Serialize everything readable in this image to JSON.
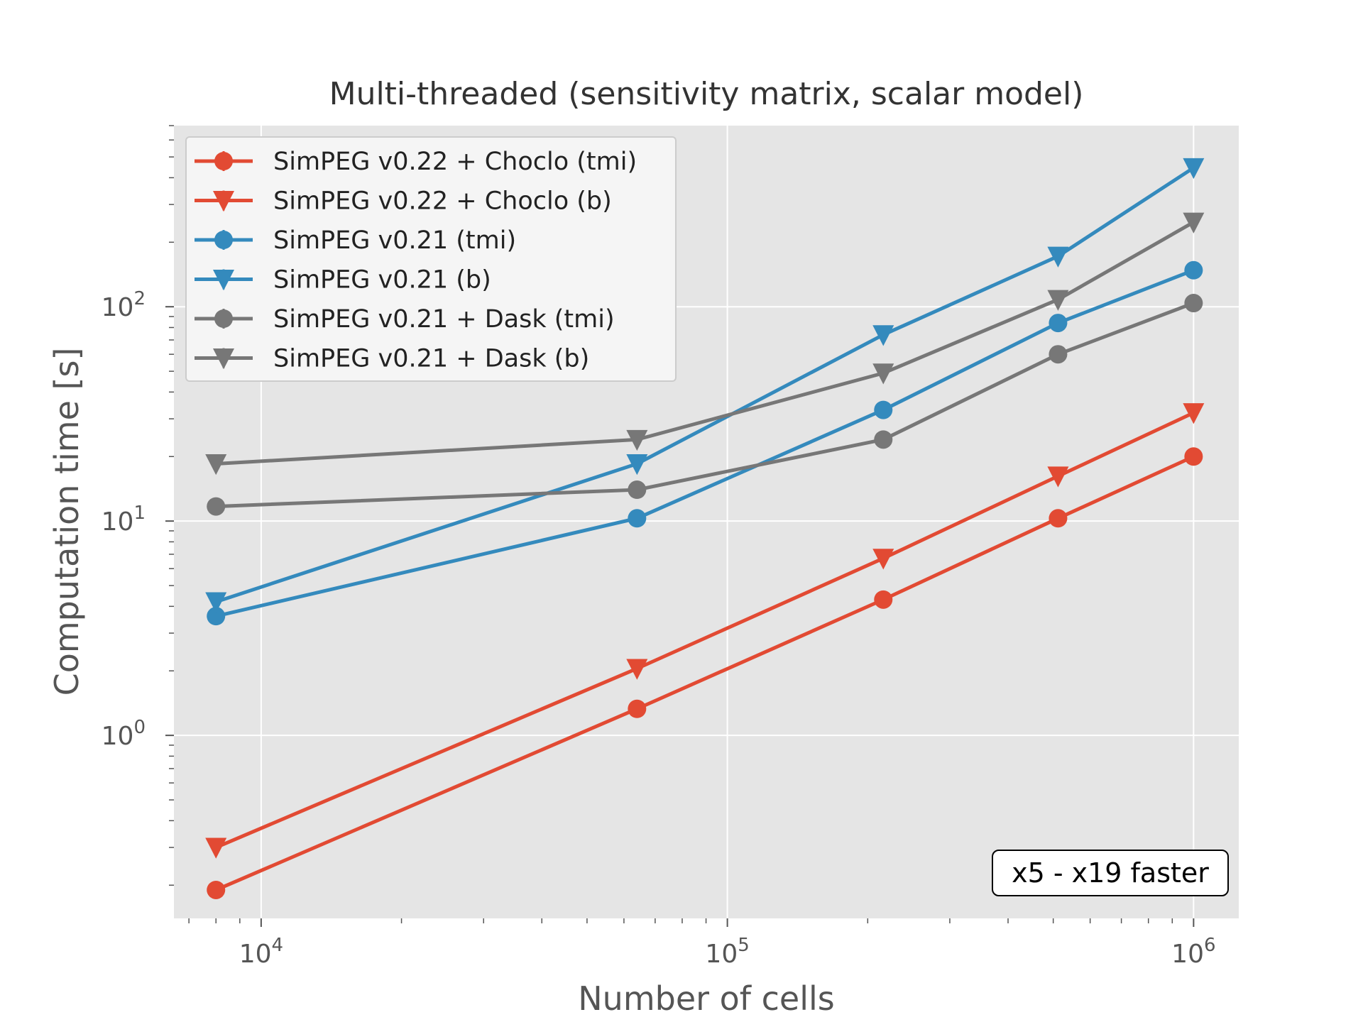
{
  "chart_data": {
    "type": "line",
    "title": "Multi-threaded (sensitivity matrix, scalar model)",
    "xlabel": "Number of cells",
    "ylabel": "Computation time [s]",
    "xscale": "log",
    "yscale": "log",
    "xlim": [
      6500,
      1250000
    ],
    "ylim": [
      0.14,
      700
    ],
    "x": [
      8000,
      64000,
      216000,
      512000,
      1000000
    ],
    "x_ticks": [
      {
        "value": 10000,
        "base": "10",
        "exp": "4"
      },
      {
        "value": 100000,
        "base": "10",
        "exp": "5"
      },
      {
        "value": 1000000,
        "base": "10",
        "exp": "6"
      }
    ],
    "y_ticks": [
      {
        "value": 1,
        "base": "10",
        "exp": "0"
      },
      {
        "value": 10,
        "base": "10",
        "exp": "1"
      },
      {
        "value": 100,
        "base": "10",
        "exp": "2"
      }
    ],
    "grid": true,
    "legend_position": "upper-left",
    "series": [
      {
        "name": "SimPEG v0.22 + Choclo (tmi)",
        "color": "#E24A33",
        "marker": "circle",
        "values": [
          0.19,
          1.33,
          4.3,
          10.3,
          20
        ]
      },
      {
        "name": "SimPEG v0.22 + Choclo (b)",
        "color": "#E24A33",
        "marker": "triangle-down",
        "values": [
          0.3,
          2.05,
          6.7,
          16.2,
          32
        ]
      },
      {
        "name": "SimPEG v0.21 (tmi)",
        "color": "#348ABD",
        "marker": "circle",
        "values": [
          3.6,
          10.3,
          33,
          84,
          148
        ]
      },
      {
        "name": "SimPEG v0.21 (b)",
        "color": "#348ABD",
        "marker": "triangle-down",
        "values": [
          4.2,
          18.5,
          74,
          172,
          445
        ]
      },
      {
        "name": "SimPEG v0.21 + Dask (tmi)",
        "color": "#777777",
        "marker": "circle",
        "values": [
          11.7,
          14,
          24,
          60,
          104
        ]
      },
      {
        "name": "SimPEG v0.21 + Dask (b)",
        "color": "#777777",
        "marker": "triangle-down",
        "values": [
          18.5,
          24,
          49,
          108,
          248
        ]
      }
    ],
    "annotations": [
      {
        "text": "x5 - x19 faster",
        "position": "lower-right"
      }
    ]
  }
}
